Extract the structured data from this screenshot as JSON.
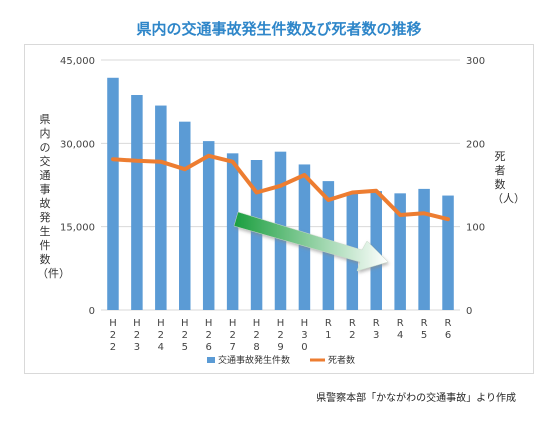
{
  "title": "県内の交通事故発生件数及び死者数の推移",
  "source": "県警察本部「かながわの交通事故」より作成",
  "chart_data": {
    "type": "bar",
    "categories": [
      "H22",
      "H23",
      "H24",
      "H25",
      "H26",
      "H27",
      "H28",
      "H29",
      "H30",
      "R1",
      "R2",
      "R3",
      "R4",
      "R5",
      "R6"
    ],
    "category_vertical": [
      "H\n2\n2",
      "H\n2\n3",
      "H\n2\n4",
      "H\n2\n5",
      "H\n2\n6",
      "H\n2\n7",
      "H\n2\n8",
      "H\n2\n9",
      "H\n3\n0",
      "R\n1",
      "R\n2",
      "R\n3",
      "R\n4",
      "R\n5",
      "R\n6"
    ],
    "series": [
      {
        "name": "交通事故発生件数",
        "type": "bar",
        "axis": "left",
        "color": "#5b9bd5",
        "values": [
          41800,
          38700,
          36800,
          33900,
          30400,
          28200,
          27000,
          28500,
          26200,
          23200,
          21200,
          21400,
          21000,
          21800,
          20600
        ]
      },
      {
        "name": "死者数",
        "type": "line",
        "axis": "right",
        "color": "#ed7d31",
        "values": [
          181,
          179,
          178,
          169,
          185,
          178,
          141,
          149,
          162,
          132,
          141,
          143,
          114,
          116,
          109
        ]
      }
    ],
    "ylabel_left": "県内の交通事故発生件数（件）",
    "ylabel_right": "死者数（人）",
    "ylim_left": [
      0,
      45000
    ],
    "ylim_right": [
      0,
      300
    ],
    "yticks_left": [
      "0",
      "15,000",
      "30,000",
      "45,000"
    ],
    "yticks_right": [
      "0",
      "100",
      "200",
      "300"
    ],
    "legend_position": "bottom",
    "grid": true,
    "annotation": {
      "type": "arrow",
      "color_start": "#1a9e3e",
      "color_end": "#ffffff",
      "direction": "down-right"
    }
  }
}
